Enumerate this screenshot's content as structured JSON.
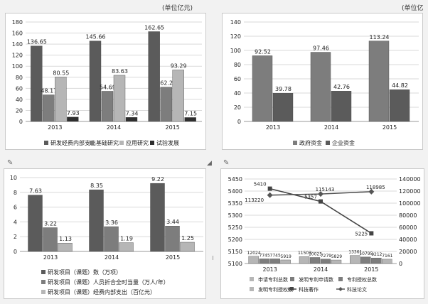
{
  "unit_left": "(单位亿元)",
  "unit_right": "(单位亿元)",
  "colors": {
    "dark": "#5b5b5b",
    "mid": "#7d7d7d",
    "light": "#b6b6b6",
    "black": "#2e2e2e",
    "line_dark": "#444444",
    "line_mid": "#555555"
  },
  "chart_data": [
    {
      "type": "bar",
      "categories": [
        "2013",
        "2014",
        "2015"
      ],
      "ylim": [
        0,
        180
      ],
      "yticks": [
        0,
        20,
        40,
        60,
        80,
        100,
        120,
        140,
        160,
        180
      ],
      "series": [
        {
          "name": "研发经费内部支出",
          "values": [
            136.65,
            145.66,
            162.65
          ],
          "labels": [
            "136.65",
            "145.66",
            "162.65"
          ],
          "color": "dark"
        },
        {
          "name": "基础研究",
          "values": [
            48.17,
            54.69,
            62.2
          ],
          "labels": [
            "48.17",
            "54.69",
            "62.2"
          ],
          "color": "mid"
        },
        {
          "name": "应用研究",
          "values": [
            80.55,
            83.63,
            93.29
          ],
          "labels": [
            "80.55",
            "83.63",
            "93.29"
          ],
          "color": "light"
        },
        {
          "name": "试验发展",
          "values": [
            7.93,
            7.34,
            7.15
          ],
          "labels": [
            "7.93",
            "7.34",
            "7.15"
          ],
          "color": "black"
        }
      ],
      "legend": "bottom"
    },
    {
      "type": "bar",
      "categories": [
        "2013",
        "2014",
        "2015"
      ],
      "ylim": [
        0,
        140
      ],
      "yticks": [
        0,
        20,
        40,
        60,
        80,
        100,
        120,
        140
      ],
      "series": [
        {
          "name": "政府资金",
          "values": [
            92.52,
            97.46,
            113.24
          ],
          "labels": [
            "92.52",
            "97.46",
            "113.24"
          ],
          "color": "mid"
        },
        {
          "name": "企业资金",
          "values": [
            39.78,
            42.76,
            44.82
          ],
          "labels": [
            "39.78",
            "42.76",
            "44.82"
          ],
          "color": "dark"
        }
      ],
      "legend": "bottom"
    },
    {
      "type": "bar",
      "categories": [
        "2013",
        "2014",
        "2015"
      ],
      "ylim": [
        0,
        10
      ],
      "yticks": [
        0,
        2,
        4,
        6,
        8,
        10
      ],
      "series": [
        {
          "name": "研发项目（课题）数（万项）",
          "values": [
            7.63,
            8.35,
            9.22
          ],
          "labels": [
            "7.63",
            "8.35",
            "9.22"
          ],
          "color": "dark"
        },
        {
          "name": "研发项目（课题）人员折合全时当量（万人/年）",
          "values": [
            3.22,
            3.36,
            3.44
          ],
          "labels": [
            "3.22",
            "3.36",
            "3.44"
          ],
          "color": "mid"
        },
        {
          "name": "研发项目（课题）经费内部支出（百亿元）",
          "values": [
            1.13,
            1.19,
            1.25
          ],
          "labels": [
            "1.13",
            "1.19",
            "1.25"
          ],
          "color": "light"
        }
      ],
      "legend": "bottom-left"
    },
    {
      "type": "bar",
      "categories": [
        "2013",
        "2014",
        "2015"
      ],
      "ylim": [
        5100,
        5450
      ],
      "yticks": [
        5100,
        5150,
        5200,
        5250,
        5300,
        5350,
        5400,
        5450
      ],
      "y2lim": [
        0,
        140000
      ],
      "y2ticks": [
        0,
        20000,
        40000,
        60000,
        80000,
        100000,
        120000,
        140000
      ],
      "y2tick_labels": [
        "0",
        "20000",
        "40000",
        "60000",
        "80000",
        "100000",
        "120000",
        "140000"
      ],
      "series": [
        {
          "name": "申请专利总数",
          "axis": "right",
          "kind": "bar",
          "values": [
            12024,
            11503,
            13361
          ],
          "labels": [
            "12024",
            "11503",
            "13361"
          ],
          "color": "light"
        },
        {
          "name": "发明专利申请数",
          "axis": "right",
          "kind": "bar",
          "values": [
            7745,
            10025,
            10795
          ],
          "labels": [
            "7745",
            "10025",
            "10795"
          ],
          "color": "mid"
        },
        {
          "name": "专利授权总数",
          "axis": "right",
          "kind": "bar",
          "values": [
            7745,
            7279,
            9212
          ],
          "labels": [
            "7745",
            "7279",
            "9212"
          ],
          "color": "mid"
        },
        {
          "name": "发明专利授权数",
          "axis": "right",
          "kind": "bar",
          "values": [
            5919,
            5829,
            7161
          ],
          "labels": [
            "5919",
            "5829",
            "7161"
          ],
          "color": "light"
        },
        {
          "name": "科技著作",
          "axis": "left",
          "kind": "line",
          "marker": "square",
          "values": [
            5410,
            5357,
            5225
          ],
          "labels": [
            "5410",
            "5357",
            "5225"
          ],
          "color": "line_dark"
        },
        {
          "name": "科技论文",
          "axis": "right",
          "kind": "line",
          "marker": "diamond",
          "values": [
            113220,
            115143,
            118985
          ],
          "labels": [
            "113220",
            "115143",
            "118985"
          ],
          "color": "line_mid"
        }
      ],
      "legend": "bottom"
    }
  ]
}
